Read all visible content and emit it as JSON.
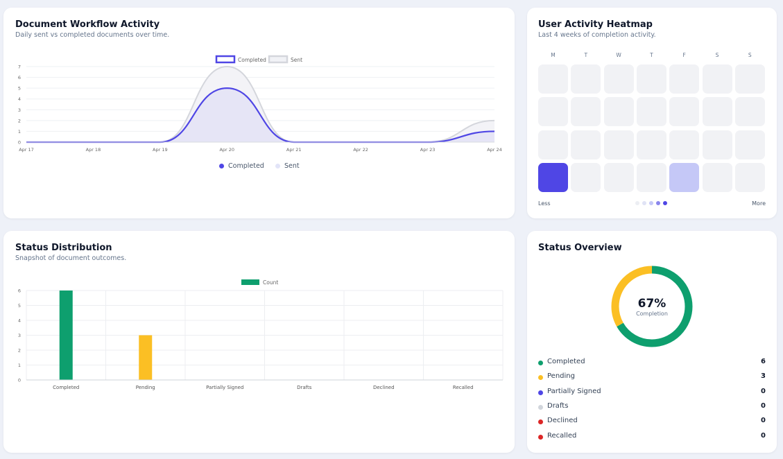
{
  "workflow": {
    "title": "Document Workflow Activity",
    "subtitle": "Daily sent vs completed documents over time.",
    "legend_top": {
      "completed": "Completed",
      "sent": "Sent"
    },
    "legend_bottom": {
      "completed": "Completed",
      "sent": "Sent"
    },
    "chart_data": {
      "type": "line",
      "x": [
        "Apr 17",
        "Apr 18",
        "Apr 19",
        "Apr 20",
        "Apr 21",
        "Apr 22",
        "Apr 23",
        "Apr 24"
      ],
      "series": [
        {
          "name": "Completed",
          "values": [
            0,
            0,
            0,
            5,
            0,
            0,
            0,
            1
          ],
          "color": "#4f46e5"
        },
        {
          "name": "Sent",
          "values": [
            0,
            0,
            0,
            7,
            0,
            0,
            0,
            2
          ],
          "color": "#d4d6dc"
        }
      ],
      "ylim": [
        0,
        7
      ],
      "yticks": [
        "0",
        "1",
        "2",
        "3",
        "4",
        "5",
        "6",
        "7"
      ],
      "grid": true,
      "legend": "top-center"
    }
  },
  "heatmap": {
    "title": "User Activity Heatmap",
    "subtitle": "Last 4 weeks of completion activity.",
    "days": [
      "M",
      "T",
      "W",
      "T",
      "F",
      "S",
      "S"
    ],
    "levels": [
      [
        0,
        0,
        0,
        0,
        0,
        0,
        0
      ],
      [
        0,
        0,
        0,
        0,
        0,
        0,
        0
      ],
      [
        0,
        0,
        0,
        0,
        0,
        0,
        0
      ],
      [
        4,
        0,
        0,
        0,
        2,
        0,
        0
      ]
    ],
    "level_colors": [
      "#f1f2f5",
      "#e0e3f5",
      "#c5c8f7",
      "#8a86ec",
      "#4f46e5"
    ],
    "less_label": "Less",
    "more_label": "More"
  },
  "distribution": {
    "title": "Status Distribution",
    "subtitle": "Snapshot of document outcomes.",
    "legend_label": "Count",
    "chart_data": {
      "type": "bar",
      "categories": [
        "Completed",
        "Pending",
        "Partially Signed",
        "Drafts",
        "Declined",
        "Recalled"
      ],
      "series": [
        {
          "name": "Count",
          "values": [
            6,
            3,
            0,
            0,
            0,
            0
          ]
        }
      ],
      "bar_colors": [
        "#0e9f6e",
        "#fbbf24",
        "#4f46e5",
        "#d1d5db",
        "#dc2626",
        "#dc2626"
      ],
      "ylim": [
        0,
        6
      ],
      "yticks": [
        "0",
        "1",
        "2",
        "3",
        "4",
        "5",
        "6"
      ],
      "grid": true,
      "legend": "top-center"
    }
  },
  "overview": {
    "title": "Status Overview",
    "percent": "67%",
    "caption": "Completion",
    "chart_data": {
      "type": "pie",
      "labels": [
        "Completed",
        "Pending",
        "Partially Signed",
        "Drafts",
        "Declined",
        "Recalled"
      ],
      "values": [
        6,
        3,
        0,
        0,
        0,
        0
      ],
      "colors": [
        "#0e9f6e",
        "#fbbf24",
        "#4f46e5",
        "#d1d5db",
        "#dc2626",
        "#dc2626"
      ]
    },
    "items": [
      {
        "label": "Completed",
        "count": "6",
        "color": "#0e9f6e"
      },
      {
        "label": "Pending",
        "count": "3",
        "color": "#fbbf24"
      },
      {
        "label": "Partially Signed",
        "count": "0",
        "color": "#4f46e5"
      },
      {
        "label": "Drafts",
        "count": "0",
        "color": "#d1d5db"
      },
      {
        "label": "Declined",
        "count": "0",
        "color": "#dc2626"
      },
      {
        "label": "Recalled",
        "count": "0",
        "color": "#dc2626"
      }
    ]
  }
}
